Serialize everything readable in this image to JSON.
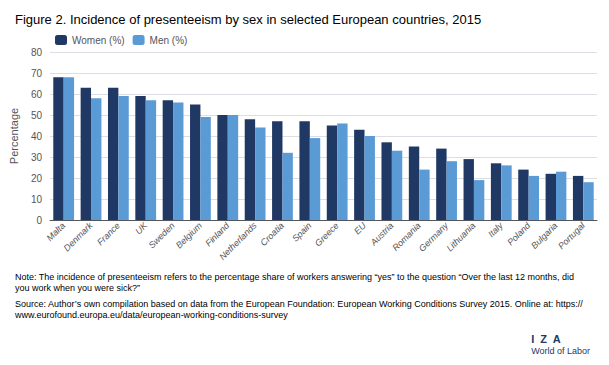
{
  "chart_data": {
    "type": "bar",
    "title": "Figure 2. Incidence of presenteeism by sex in selected European countries, 2015",
    "ylabel": "Percentage",
    "categories": [
      "Malta",
      "Denmark",
      "France",
      "UK",
      "Sweden",
      "Belgium",
      "Finland",
      "Netherlands",
      "Croatia",
      "Spain",
      "Greece",
      "EU",
      "Austria",
      "Romania",
      "Germany",
      "Lithuania",
      "Italy",
      "Poland",
      "Bulgaria",
      "Portugal"
    ],
    "series": [
      {
        "name": "Women (%)",
        "color": "#1F3864",
        "values": [
          68,
          63,
          63,
          59,
          57,
          55,
          50,
          48,
          47,
          47,
          45,
          43,
          37,
          35,
          34,
          29,
          27,
          24,
          22,
          21
        ]
      },
      {
        "name": "Men (%)",
        "color": "#5B9BD5",
        "values": [
          68,
          58,
          59,
          57,
          56,
          49,
          50,
          44,
          32,
          39,
          46,
          40,
          33,
          24,
          28,
          19,
          26,
          21,
          23,
          18
        ]
      }
    ],
    "ylim": [
      0,
      80
    ],
    "yticks": [
      0,
      10,
      20,
      30,
      40,
      50,
      60,
      70,
      80
    ],
    "grid": true,
    "legend": "upper left",
    "annotations": [
      "Note: The incidence of presenteeism refers to the percentage share of workers answering “yes” to the question “Over the last 12 months, did you work when you were sick?”",
      "Source: Author’s own compilation based on data from the European Foundation: European Working Conditions Survey 2015. Online at: https://www.eurofound.europa.eu/data/european-working-conditions-survey",
      "I  Z  A",
      "World of Labor"
    ]
  }
}
